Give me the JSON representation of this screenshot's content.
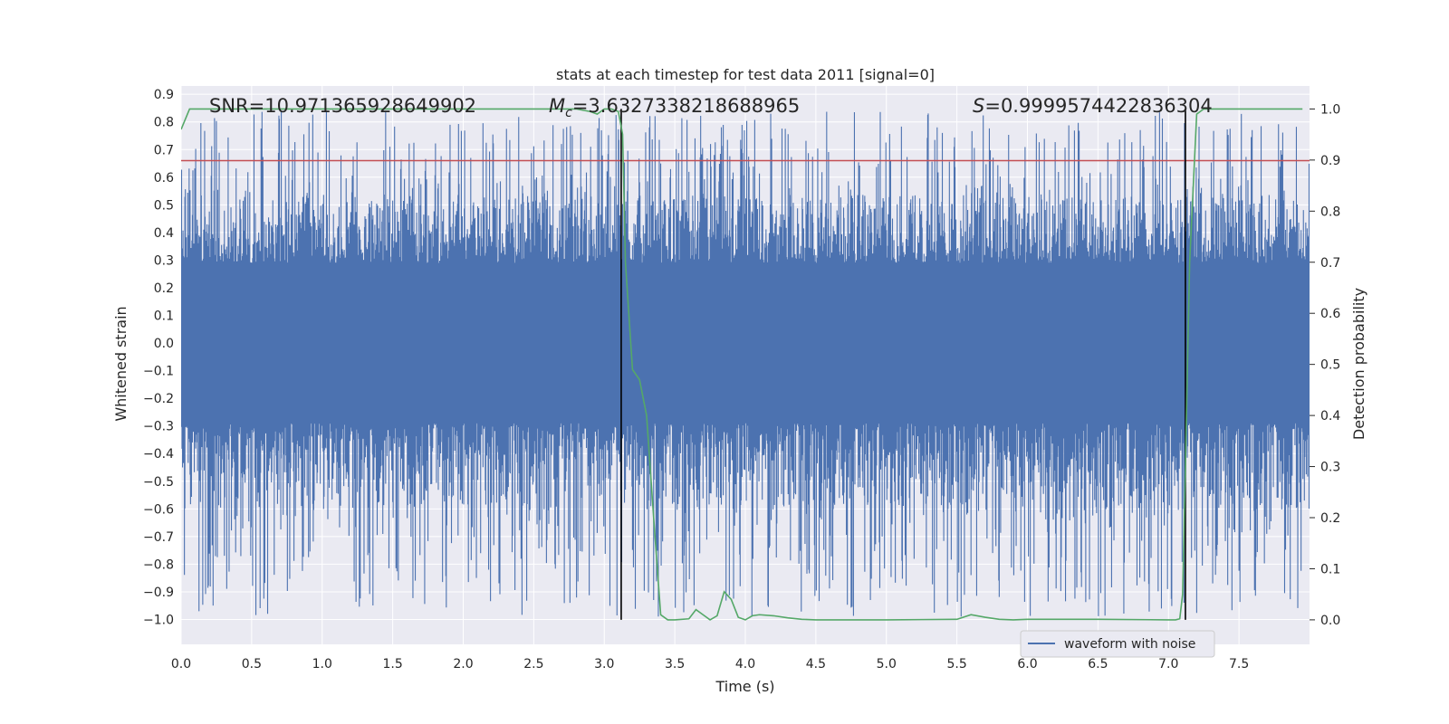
{
  "chart_data": {
    "type": "line",
    "title": "stats at each timestep for test data 2011 [signal=0]",
    "xlabel": "Time (s)",
    "ylabel_left": "Whitened strain",
    "ylabel_right": "Detection probability",
    "xlim": [
      0.0,
      8.0
    ],
    "ylim_left": [
      -1.09,
      0.93
    ],
    "ylim_right": [
      -0.048,
      1.045
    ],
    "x_ticks": [
      "0.0",
      "0.5",
      "1.0",
      "1.5",
      "2.0",
      "2.5",
      "3.0",
      "3.5",
      "4.0",
      "4.5",
      "5.0",
      "5.5",
      "6.0",
      "6.5",
      "7.0",
      "7.5"
    ],
    "x_tick_values": [
      0.0,
      0.5,
      1.0,
      1.5,
      2.0,
      2.5,
      3.0,
      3.5,
      4.0,
      4.5,
      5.0,
      5.5,
      6.0,
      6.5,
      7.0,
      7.5
    ],
    "y_left_ticks": [
      "0.9",
      "0.8",
      "0.7",
      "0.6",
      "0.5",
      "0.4",
      "0.3",
      "0.2",
      "0.1",
      "0.0",
      "−0.1",
      "−0.2",
      "−0.3",
      "−0.4",
      "−0.5",
      "−0.6",
      "−0.7",
      "−0.8",
      "−0.9",
      "−1.0"
    ],
    "y_left_tick_values": [
      0.9,
      0.8,
      0.7,
      0.6,
      0.5,
      0.4,
      0.3,
      0.2,
      0.1,
      0.0,
      -0.1,
      -0.2,
      -0.3,
      -0.4,
      -0.5,
      -0.6,
      -0.7,
      -0.8,
      -0.9,
      -1.0
    ],
    "y_right_ticks": [
      "1.0",
      "0.9",
      "0.8",
      "0.7",
      "0.6",
      "0.5",
      "0.4",
      "0.3",
      "0.2",
      "0.1",
      "0.0"
    ],
    "y_right_tick_values": [
      1.0,
      0.9,
      0.8,
      0.7,
      0.6,
      0.5,
      0.4,
      0.3,
      0.2,
      0.1,
      0.0
    ],
    "annotations": {
      "snr": "SNR=10.971365928649902",
      "mc_symbol": "M",
      "mc_subscript": "c",
      "mc_value": "=3.6327338218688965",
      "s_symbol": "S",
      "s_value": "=0.9999574422836304"
    },
    "threshold_left": 0.66,
    "vertical_lines_x": [
      3.12,
      7.12
    ],
    "series": [
      {
        "name": "waveform with noise",
        "axis": "left",
        "color": "#4c72b0",
        "description": "noisy whitened strain, roughly uniform band of width ~0.3 with spikes up to ~0.84 and down to ~-0.99",
        "band_abs": 0.29,
        "peak_max": 0.84,
        "peak_min": -0.99
      },
      {
        "name": "detection probability",
        "axis": "right",
        "color": "#55a868",
        "x": [
          0.0,
          0.06,
          0.5,
          1.0,
          1.5,
          2.0,
          2.5,
          2.6,
          2.8,
          2.9,
          2.95,
          3.0,
          3.05,
          3.1,
          3.13,
          3.15,
          3.2,
          3.25,
          3.3,
          3.35,
          3.4,
          3.45,
          3.5,
          3.6,
          3.65,
          3.7,
          3.75,
          3.8,
          3.85,
          3.9,
          3.95,
          4.0,
          4.05,
          4.1,
          4.2,
          4.3,
          4.4,
          4.5,
          5.0,
          5.5,
          5.6,
          5.7,
          5.8,
          5.9,
          6.0,
          6.5,
          7.0,
          7.05,
          7.08,
          7.1,
          7.12,
          7.15,
          7.2,
          7.25,
          7.5,
          7.95
        ],
        "values": [
          0.96,
          1.0,
          1.0,
          1.0,
          1.0,
          1.0,
          1.0,
          1.0,
          1.0,
          0.995,
          0.99,
          1.0,
          1.0,
          0.995,
          0.95,
          0.7,
          0.49,
          0.47,
          0.4,
          0.2,
          0.01,
          0.0,
          0.0,
          0.002,
          0.02,
          0.01,
          0.0,
          0.008,
          0.055,
          0.04,
          0.005,
          0.0,
          0.008,
          0.01,
          0.008,
          0.004,
          0.001,
          0.0,
          0.0,
          0.001,
          0.01,
          0.005,
          0.001,
          0.0,
          0.001,
          0.001,
          0.0,
          0.0,
          0.002,
          0.05,
          0.3,
          0.7,
          0.99,
          1.0,
          1.0,
          1.0
        ]
      },
      {
        "name": "threshold",
        "axis": "left",
        "color": "#c44e52",
        "y": 0.66
      }
    ],
    "legend": {
      "entries": [
        "waveform with noise"
      ],
      "placement": "lower-right"
    }
  }
}
